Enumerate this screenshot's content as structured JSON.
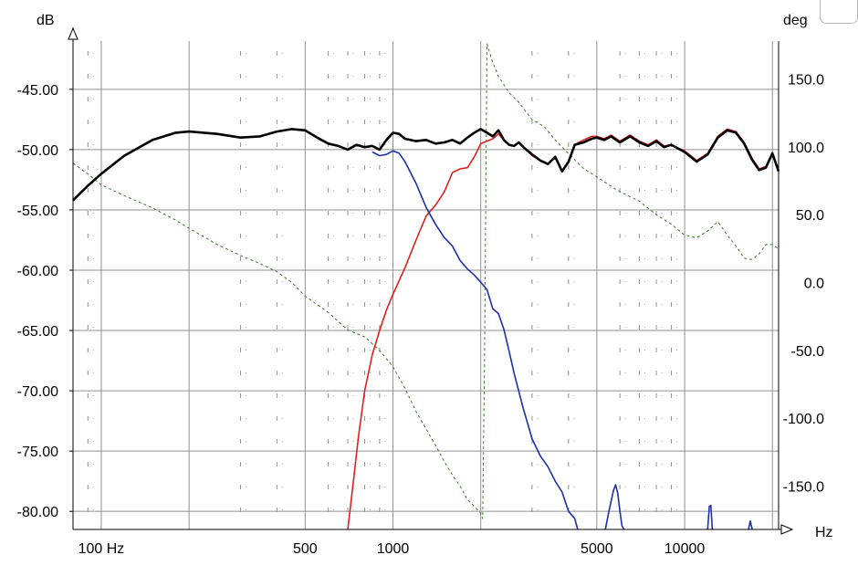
{
  "chart_data": {
    "type": "line",
    "x_scale": "log",
    "xlabel": "Hz",
    "ylabel": "dB",
    "y2label": "deg",
    "xlim": [
      80,
      21000
    ],
    "ylim": [
      -81.5,
      -41.0
    ],
    "y2lim": [
      -182,
      178
    ],
    "x_ticks": [
      100,
      500,
      1000,
      5000,
      10000
    ],
    "x_tick_labels": [
      "100 Hz",
      "500",
      "1000",
      "5000",
      "10000"
    ],
    "y_ticks": [
      -45,
      -50,
      -55,
      -60,
      -65,
      -70,
      -75,
      -80
    ],
    "y_tick_labels": [
      "-45.00",
      "-50.00",
      "-55.00",
      "-60.00",
      "-65.00",
      "-70.00",
      "-75.00",
      "-80.00"
    ],
    "y2_ticks": [
      150,
      100,
      50,
      0,
      -50,
      -100,
      -150
    ],
    "y2_tick_labels": [
      "150.0",
      "100.0",
      "50.0",
      "0.0",
      "-50.0",
      "-100.0",
      "-150.0"
    ],
    "grid": true,
    "series": [
      {
        "color": "#000000",
        "axis": "left",
        "x": [
          80,
          90,
          100,
          120,
          150,
          180,
          200,
          250,
          300,
          350,
          400,
          450,
          500,
          550,
          600,
          650,
          700,
          750,
          800,
          850,
          900,
          950,
          1000,
          1050,
          1100,
          1200,
          1300,
          1400,
          1500,
          1600,
          1700,
          1800,
          1900,
          2000,
          2100,
          2200,
          2300,
          2400,
          2500,
          2600,
          2700,
          2800,
          3000,
          3200,
          3400,
          3600,
          3800,
          4000,
          4200,
          4500,
          4800,
          5000,
          5300,
          5600,
          6000,
          6500,
          7000,
          7500,
          8000,
          8500,
          9000,
          10000,
          11000,
          12000,
          13000,
          14000,
          15000,
          16000,
          17000,
          18000,
          19000,
          20000,
          21000
        ],
        "y": [
          -54.2,
          -53.0,
          -52.0,
          -50.5,
          -49.2,
          -48.6,
          -48.5,
          -48.7,
          -49.0,
          -48.9,
          -48.5,
          -48.3,
          -48.4,
          -49.0,
          -49.5,
          -49.7,
          -50.0,
          -49.6,
          -49.8,
          -49.7,
          -50.0,
          -49.2,
          -48.6,
          -48.7,
          -49.1,
          -49.3,
          -49.2,
          -49.5,
          -49.4,
          -49.2,
          -49.5,
          -49.0,
          -48.6,
          -48.3,
          -48.6,
          -48.9,
          -48.4,
          -49.2,
          -49.6,
          -49.7,
          -49.4,
          -49.8,
          -50.4,
          -50.9,
          -51.2,
          -50.6,
          -51.8,
          -51.0,
          -49.6,
          -49.4,
          -49.1,
          -49.0,
          -49.2,
          -48.9,
          -49.4,
          -48.9,
          -49.4,
          -49.7,
          -49.3,
          -49.8,
          -49.6,
          -50.2,
          -51.0,
          -50.4,
          -49.0,
          -48.4,
          -48.6,
          -49.5,
          -50.8,
          -51.7,
          -51.5,
          -50.3,
          -51.8
        ]
      },
      {
        "color": "#e02020",
        "axis": "left",
        "x": [
          700,
          720,
          740,
          760,
          800,
          850,
          900,
          950,
          1000,
          1100,
          1200,
          1300,
          1400,
          1500,
          1600,
          1700,
          1800,
          1900,
          2000,
          2100,
          2200,
          2300,
          2400,
          2500,
          2600,
          2700,
          2800,
          3000,
          3200,
          3400,
          3600,
          3800,
          4000,
          4200,
          4500,
          4800,
          5000,
          5300,
          5600,
          6000,
          6500,
          7000,
          7500,
          8000,
          8500,
          9000,
          10000,
          11000,
          12000,
          13000,
          14000,
          15000,
          16000,
          17000,
          18000,
          19000,
          20000,
          21000
        ],
        "y": [
          -81.5,
          -79.0,
          -76.5,
          -74.0,
          -70.0,
          -67.0,
          -65.0,
          -63.3,
          -62.0,
          -59.8,
          -57.5,
          -55.5,
          -54.6,
          -53.5,
          -51.9,
          -51.6,
          -51.5,
          -50.6,
          -49.5,
          -49.3,
          -49.1,
          -48.7,
          -49.2,
          -49.6,
          -49.7,
          -49.4,
          -49.8,
          -50.5,
          -50.9,
          -51.2,
          -50.6,
          -51.8,
          -51.0,
          -49.6,
          -49.2,
          -48.9,
          -48.9,
          -49.1,
          -48.8,
          -49.3,
          -48.8,
          -49.3,
          -49.6,
          -49.2,
          -49.7,
          -49.6,
          -50.1,
          -50.9,
          -50.3,
          -48.9,
          -48.3,
          -48.5,
          -49.4,
          -50.7,
          -51.6,
          -51.4,
          -50.3,
          -51.7
        ]
      },
      {
        "color": "#1e2fae",
        "axis": "left",
        "x": [
          850,
          900,
          950,
          1000,
          1050,
          1100,
          1200,
          1300,
          1400,
          1500,
          1600,
          1700,
          1800,
          1900,
          2000,
          2100,
          2200,
          2300,
          2400,
          2500,
          2600,
          2800,
          3000,
          3200,
          3400,
          3600,
          3800,
          4000,
          4200,
          4300
        ],
        "y": [
          -50.2,
          -50.5,
          -50.4,
          -50.1,
          -50.3,
          -51.0,
          -52.8,
          -54.8,
          -56.2,
          -57.3,
          -58.0,
          -59.2,
          -59.9,
          -60.4,
          -61.0,
          -61.6,
          -63.2,
          -63.6,
          -64.9,
          -66.7,
          -68.5,
          -71.5,
          -74.0,
          -75.4,
          -76.3,
          -77.5,
          -78.4,
          -80.0,
          -80.6,
          -81.5
        ]
      },
      {
        "color": "#1e2fae",
        "axis": "left",
        "x": [
          5350,
          5500,
          5700,
          5800,
          5900,
          6000,
          6100,
          6200
        ],
        "y": [
          -81.5,
          -80.0,
          -78.3,
          -77.8,
          -78.5,
          -80.0,
          -81.2,
          -81.5
        ]
      },
      {
        "color": "#1e2fae",
        "axis": "left",
        "x": [
          12000,
          12150,
          12300,
          12450
        ],
        "y": [
          -81.5,
          -79.6,
          -79.5,
          -81.5
        ]
      },
      {
        "color": "#1e2fae",
        "axis": "left",
        "x": [
          16550,
          16800,
          17050
        ],
        "y": [
          -81.5,
          -80.8,
          -81.5
        ]
      },
      {
        "color": "#3a7a2a",
        "axis": "right",
        "dashed": true,
        "x": [
          80,
          90,
          100,
          120,
          150,
          180,
          200,
          250,
          300,
          350,
          400,
          450,
          500,
          600,
          700,
          800,
          900,
          1000,
          1100,
          1200,
          1300,
          1400,
          1500,
          1600,
          1700,
          1800,
          1900,
          2000,
          2030,
          2060,
          2100,
          2200,
          2300,
          2500,
          2700,
          3000,
          3300,
          3600,
          4000,
          4500,
          5000,
          5500,
          6000,
          7000,
          8000,
          9000,
          10000,
          11000,
          12000,
          13000,
          14000,
          15000,
          16000,
          17000,
          18000,
          19000,
          20000,
          21000
        ],
        "y": [
          88,
          80,
          72,
          64,
          55,
          46,
          40,
          28,
          20,
          14,
          8,
          0,
          -10,
          -22,
          -35,
          -40,
          -50,
          -62,
          -78,
          -95,
          -108,
          -120,
          -132,
          -142,
          -150,
          -160,
          -165,
          -170,
          -174,
          -60,
          176,
          162,
          152,
          140,
          133,
          120,
          115,
          105,
          95,
          84,
          78,
          72,
          67,
          60,
          50,
          43,
          35,
          33,
          38,
          45,
          35,
          27,
          18,
          17,
          21,
          28,
          28,
          25
        ]
      }
    ]
  }
}
